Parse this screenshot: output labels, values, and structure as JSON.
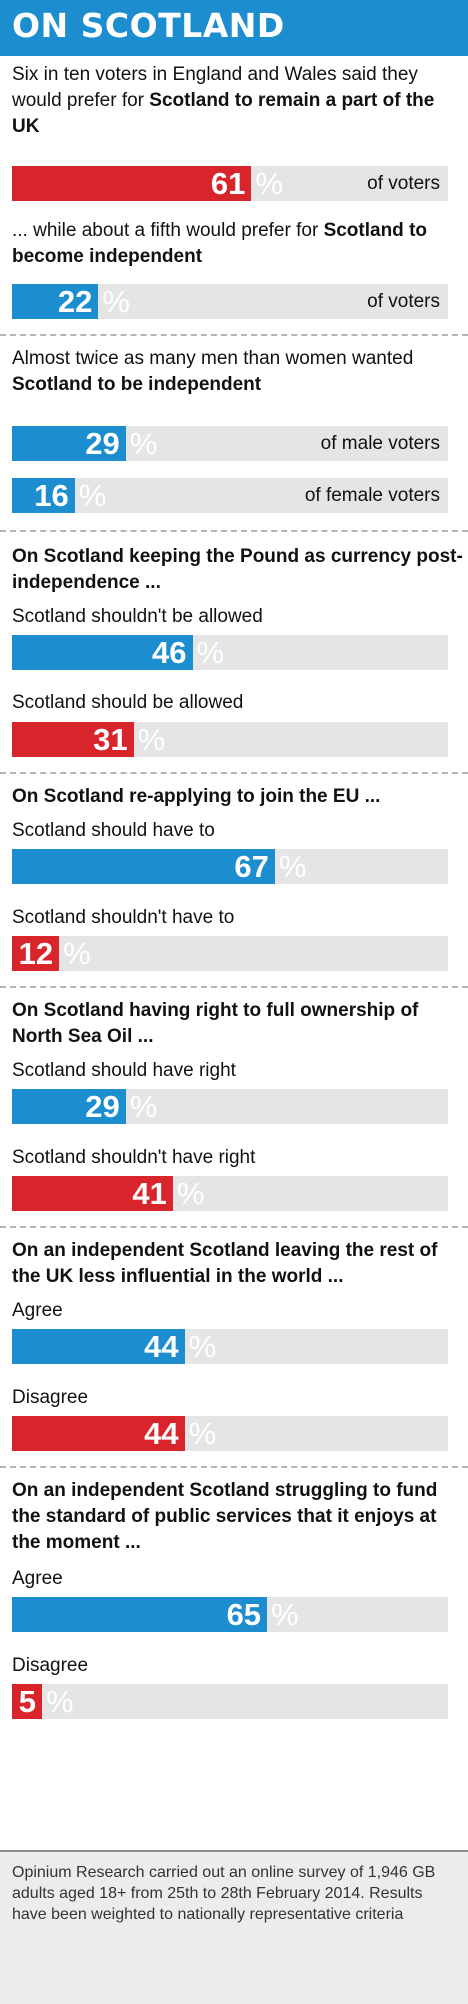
{
  "header": {
    "title": "ON SCOTLAND"
  },
  "colors": {
    "blue": "#1c8ed0",
    "red": "#d8242b",
    "track": "#e5e5e5"
  },
  "percent_sign": "%",
  "texts": {
    "t1": [
      "Six in ten voters in England and Wales said they would prefer for ",
      "Scotland to remain a part of the UK"
    ],
    "t2": [
      "... while about a fifth would prefer for ",
      "Scotland to become independent"
    ],
    "t3": [
      "Almost twice as many men than women wanted ",
      "Scotland to be independent"
    ]
  },
  "questions": {
    "q_pound": "On Scotland keeping the Pound as currency post-independence ...",
    "q_eu": "On Scotland re-applying to join the EU ...",
    "q_oil": "On Scotland having right to full ownership of North Sea Oil ...",
    "q_influence": "On an independent Scotland leaving the rest of the UK less influential in the world ...",
    "q_services": "On an independent Scotland struggling to fund the standard of public services that it enjoys at the moment ..."
  },
  "labels": {
    "pound_not": "Scotland shouldn't be allowed",
    "pound_yes": "Scotland should be allowed",
    "eu_yes": "Scotland should have to",
    "eu_not": "Scotland shouldn't have to",
    "oil_yes": "Scotland should have right",
    "oil_not": "Scotland shouldn't have right",
    "inf_agree": "Agree",
    "inf_disagree": "Disagree",
    "srv_agree": "Agree",
    "srv_disagree": "Disagree"
  },
  "chart_data": {
    "type": "bar",
    "unit": "%",
    "xlim": [
      0,
      100
    ],
    "bars": [
      {
        "id": "remain",
        "value": 61,
        "color": "red",
        "suffix": "of voters"
      },
      {
        "id": "independent",
        "value": 22,
        "color": "blue",
        "suffix": "of voters"
      },
      {
        "id": "male",
        "value": 29,
        "color": "blue",
        "suffix": "of male voters"
      },
      {
        "id": "female",
        "value": 16,
        "color": "blue",
        "suffix": "of female voters"
      },
      {
        "id": "pound_not",
        "value": 46,
        "color": "blue",
        "suffix": ""
      },
      {
        "id": "pound_yes",
        "value": 31,
        "color": "red",
        "suffix": ""
      },
      {
        "id": "eu_yes",
        "value": 67,
        "color": "blue",
        "suffix": ""
      },
      {
        "id": "eu_not",
        "value": 12,
        "color": "red",
        "suffix": ""
      },
      {
        "id": "oil_yes",
        "value": 29,
        "color": "blue",
        "suffix": ""
      },
      {
        "id": "oil_not",
        "value": 41,
        "color": "red",
        "suffix": ""
      },
      {
        "id": "inf_agree",
        "value": 44,
        "color": "blue",
        "suffix": ""
      },
      {
        "id": "inf_disagree",
        "value": 44,
        "color": "red",
        "suffix": ""
      },
      {
        "id": "srv_agree",
        "value": 65,
        "color": "blue",
        "suffix": ""
      },
      {
        "id": "srv_disagree",
        "value": 5,
        "color": "red",
        "suffix": ""
      }
    ]
  },
  "footer": {
    "note": "Opinium Research carried out an online survey of 1,946 GB adults aged 18+ from 25th to 28th February 2014. Results have been weighted to nationally representative criteria"
  }
}
